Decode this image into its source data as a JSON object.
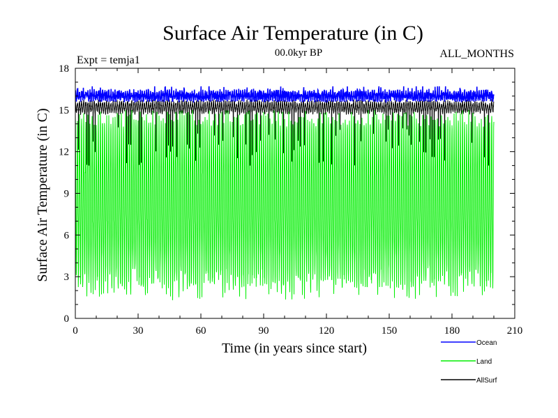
{
  "chart_data": {
    "type": "line",
    "title": "Surface Air Temperature (in C)",
    "subtitle": "00.0kyr BP",
    "left_label": "Expt = temja1",
    "right_label": "ALL_MONTHS",
    "xlabel": "Time (in years since start)",
    "ylabel": "Surface Air Temperature (in C)",
    "xlim": [
      0,
      210
    ],
    "ylim": [
      0,
      18
    ],
    "x_ticks": [
      0,
      30,
      60,
      90,
      120,
      150,
      180,
      210
    ],
    "y_ticks": [
      0,
      3,
      6,
      9,
      12,
      15,
      18
    ],
    "sampling": "monthly values, years 0 to 200",
    "series": [
      {
        "name": "Ocean",
        "color": "#0000ff",
        "min_approx": 15.6,
        "max_approx": 16.7,
        "mean_approx": 16.0
      },
      {
        "name": "Land",
        "color": "#00ee00",
        "min_approx": 0.5,
        "max_approx": 15.8,
        "mean_approx": 8.5
      },
      {
        "name": "AllSurf",
        "color": "#000000",
        "min_approx": 11.0,
        "max_approx": 16.0,
        "mean_approx": 15.2
      }
    ],
    "legend": [
      "Ocean",
      "Land",
      "AllSurf"
    ]
  }
}
